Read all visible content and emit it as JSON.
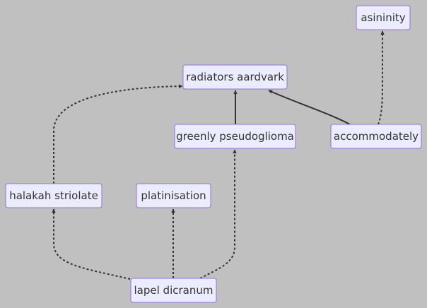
{
  "nodes": {
    "asininity": {
      "label": "asininity"
    },
    "radiators_aardvark": {
      "label": "radiators aardvark"
    },
    "greenly_pseudoglioma": {
      "label": "greenly pseudoglioma"
    },
    "accommodately": {
      "label": "accommodately"
    },
    "halakah_striolate": {
      "label": "halakah striolate"
    },
    "platinisation": {
      "label": "platinisation"
    },
    "lapel_dicranum": {
      "label": "lapel dicranum"
    }
  },
  "edges": [
    {
      "from": "accommodately",
      "to": "asininity",
      "style": "dotted"
    },
    {
      "from": "greenly_pseudoglioma",
      "to": "radiators_aardvark",
      "style": "solid"
    },
    {
      "from": "accommodately",
      "to": "radiators_aardvark",
      "style": "solid"
    },
    {
      "from": "halakah_striolate",
      "to": "radiators_aardvark",
      "style": "dotted"
    },
    {
      "from": "lapel_dicranum",
      "to": "halakah_striolate",
      "style": "dotted"
    },
    {
      "from": "lapel_dicranum",
      "to": "platinisation",
      "style": "dotted"
    },
    {
      "from": "lapel_dicranum",
      "to": "greenly_pseudoglioma",
      "style": "dotted"
    }
  ],
  "colors": {
    "background": "#c0c0c0",
    "node_fill": "#ececff",
    "node_border": "#9370db",
    "text": "#333333",
    "edge": "#333333"
  }
}
